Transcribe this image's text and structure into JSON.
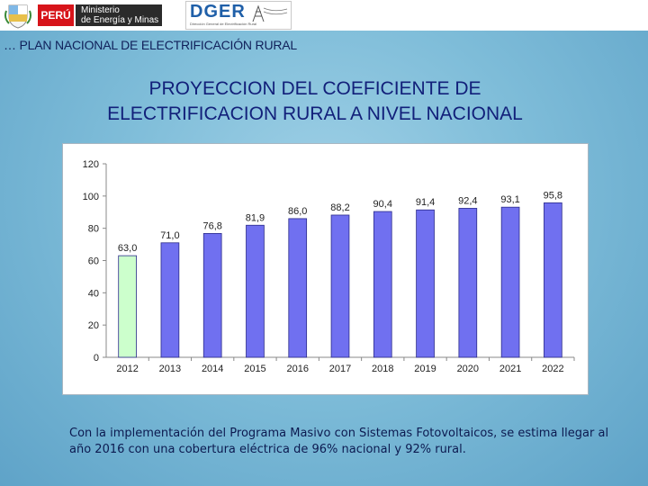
{
  "header": {
    "peru_label": "PERÚ",
    "ministry_line1": "Ministerio",
    "ministry_line2": "de Energía y Minas",
    "dger_label": "DGER",
    "dger_subtitle": "Dirección General de Electrificación Rural"
  },
  "breadcrumb": "… PLAN NACIONAL DE ELECTRIFICACIÓN RURAL",
  "title_line1": "PROYECCION DEL COEFICIENTE DE",
  "title_line2": "ELECTRIFICACION RURAL A NIVEL NACIONAL",
  "caption": "Con la implementación del Programa Masivo con Sistemas Fotovoltaicos, se estima llegar al año 2016 con una cobertura eléctrica de 96% nacional y 92% rural.",
  "colors": {
    "highlight_bar": "#ccffcc",
    "bar": "#7070f0",
    "bar_edge": "#2a2a8a",
    "brand_red": "#d7141a",
    "dger_blue": "#1f5fa8"
  },
  "chart_data": {
    "type": "bar",
    "categories": [
      "2012",
      "2013",
      "2014",
      "2015",
      "2016",
      "2017",
      "2018",
      "2019",
      "2020",
      "2021",
      "2022"
    ],
    "values": [
      63.0,
      71.0,
      76.8,
      81.9,
      86.0,
      88.2,
      90.4,
      91.4,
      92.4,
      93.1,
      95.8
    ],
    "data_labels": [
      "63,0",
      "71,0",
      "76,8",
      "81,9",
      "86,0",
      "88,2",
      "90,4",
      "91,4",
      "92,4",
      "93,1",
      "95,8"
    ],
    "highlight_index": 0,
    "ylim": [
      0,
      120
    ],
    "yticks": [
      0,
      20,
      40,
      60,
      80,
      100,
      120
    ],
    "ytick_labels": [
      "0",
      "20",
      "40",
      "60",
      "80",
      "100",
      "120"
    ],
    "title": "",
    "xlabel": "",
    "ylabel": "",
    "grid": false,
    "legend": "none"
  }
}
